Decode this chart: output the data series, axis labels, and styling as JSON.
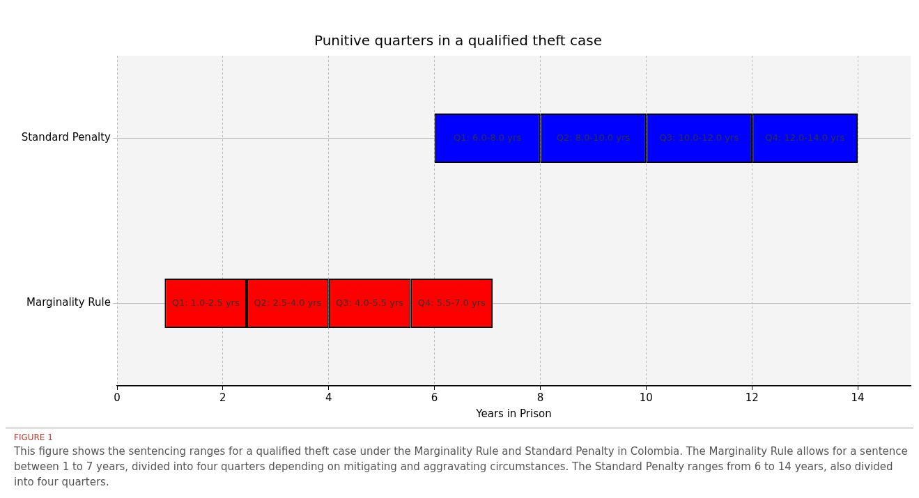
{
  "chart_data": {
    "type": "bar",
    "orientation": "horizontal",
    "title": "Punitive quarters in a qualified theft case",
    "xlabel": "Years in Prison",
    "categories": [
      "Standard Penalty",
      "Marginality Rule"
    ],
    "series": [
      {
        "values": [
          2,
          1.55
        ],
        "base": [
          6,
          0.9
        ],
        "colors": [
          "#0000ff",
          "#ff0000"
        ],
        "value_labels": [
          "Q1: 6.0-8.0 yrs",
          "Q1: 1.0-2.5 yrs"
        ]
      },
      {
        "values": [
          2,
          1.55
        ],
        "base": [
          8,
          2.45
        ],
        "colors": [
          "#0000ff",
          "#ff0000"
        ],
        "value_labels": [
          "Q2: 8.0-10.0 yrs",
          "Q2: 2.5-4.0 yrs"
        ]
      },
      {
        "values": [
          2,
          1.55
        ],
        "base": [
          10,
          4.0
        ],
        "colors": [
          "#0000ff",
          "#ff0000"
        ],
        "value_labels": [
          "Q3: 10.0-12.0 yrs",
          "Q3: 4.0-5.5 yrs"
        ]
      },
      {
        "values": [
          2,
          1.55
        ],
        "base": [
          12,
          5.55
        ],
        "colors": [
          "#0000ff",
          "#ff0000"
        ],
        "value_labels": [
          "Q4: 12.0-14.0 yrs",
          "Q4: 5.5-7.0 yrs"
        ]
      }
    ],
    "xlim": [
      0,
      15
    ],
    "xticks": [
      0,
      2,
      4,
      6,
      8,
      10,
      12,
      14
    ],
    "grid": true,
    "annotations": [
      "FIGURE 1",
      "This figure shows the sentencing ranges for a qualified theft case under the Marginality Rule and Standard Penalty in Colombia. The Marginality Rule allows for a sentence between 1 to 7 years, divided into four quarters depending on mitigating and aggravating circumstances. The Standard Penalty ranges from 6 to 14 years, also divided into four quarters."
    ]
  }
}
